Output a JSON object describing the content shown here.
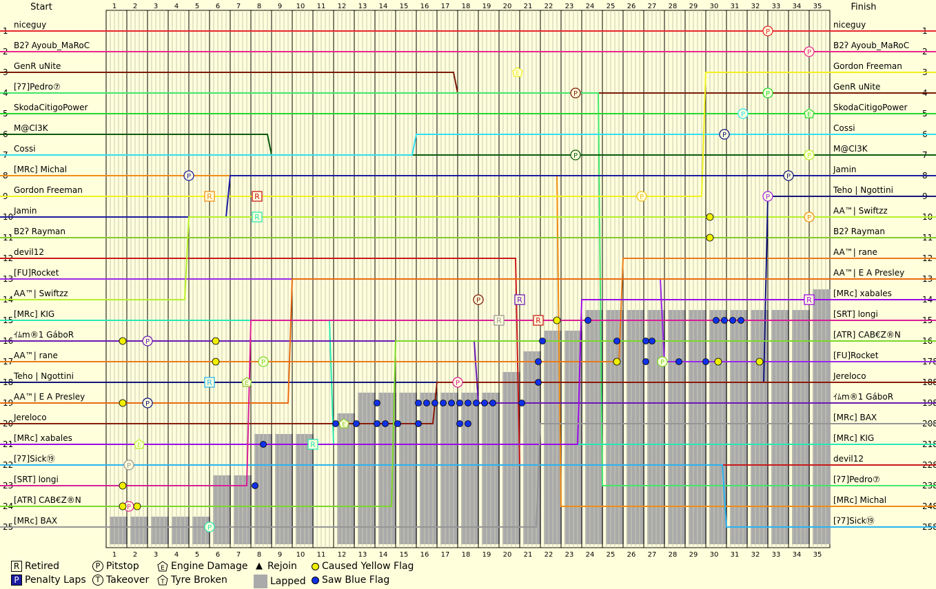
{
  "header": {
    "start_label": "Start",
    "finish_label": "Finish"
  },
  "chart_data": {
    "type": "line",
    "laps": [
      1,
      2,
      3,
      4,
      5,
      6,
      7,
      8,
      9,
      10,
      11,
      12,
      13,
      14,
      15,
      16,
      17,
      18,
      19,
      20,
      21,
      22,
      23,
      24,
      25,
      26,
      27,
      28,
      29,
      30,
      31,
      32,
      33,
      34,
      35
    ],
    "positions": [
      1,
      2,
      3,
      4,
      5,
      6,
      7,
      8,
      9,
      10,
      11,
      12,
      13,
      14,
      15,
      16,
      17,
      18,
      19,
      20,
      21,
      22,
      23,
      24,
      25
    ],
    "right_numbers": [
      "1",
      "2",
      "3",
      "4",
      "5",
      "6",
      "7",
      "8",
      "9",
      "10",
      "11",
      "12",
      "13",
      "14",
      "15",
      "16",
      "17",
      "18",
      "19",
      "20",
      "21",
      "22",
      "23",
      "24",
      "25"
    ],
    "right_suffix_numbers": [
      "1",
      "2",
      "3",
      "4",
      "5",
      "6",
      "7",
      "8",
      "9",
      "10",
      "11",
      "12",
      "13",
      "14",
      "15",
      "16",
      "178",
      "188",
      "198",
      "208",
      "218",
      "228",
      "238",
      "248",
      "258"
    ],
    "start_order": [
      {
        "name": "niceguy",
        "color": "#e8262e"
      },
      {
        "name": "B2ʔ Ayoub_MaRoC",
        "color": "#e8268c"
      },
      {
        "name": "GenR uNite",
        "color": "#7a1a06"
      },
      {
        "name": "[ʔ7]Pedro⑦",
        "color": "#3ee86a"
      },
      {
        "name": "SkodaCitigoPower",
        "color": "#22d82a"
      },
      {
        "name": "M@Cl3K",
        "color": "#0a5a0a"
      },
      {
        "name": "Cossi",
        "color": "#2ee0f0"
      },
      {
        "name": "[MRc] Michal",
        "color": "#f08c14"
      },
      {
        "name": "Gordon Freeman",
        "color": "#f0f020"
      },
      {
        "name": "Jamin",
        "color": "#1a1aa0"
      },
      {
        "name": "B2ʔ Rayman",
        "color": "#86c82a"
      },
      {
        "name": "devil12",
        "color": "#c81818"
      },
      {
        "name": "[FU]Rocket",
        "color": "#9a26e8"
      },
      {
        "name": "AA™| Swiftzz",
        "color": "#b4f028"
      },
      {
        "name": "[MRc] KIG",
        "color": "#28e8b4"
      },
      {
        "name": "ｲﾑm®1 GáboR",
        "color": "#6a18b4"
      },
      {
        "name": "AA™| rane",
        "color": "#e87a1a"
      },
      {
        "name": "Teho | Ngottini",
        "color": "#10147a"
      },
      {
        "name": "AA™| E A Presley",
        "color": "#e86a10"
      },
      {
        "name": "Jereloco",
        "color": "#8a1a08"
      },
      {
        "name": "[MRc] xabales",
        "color": "#9a0ae8"
      },
      {
        "name": "[ʔ7]Sick⑲",
        "color": "#28b4f0"
      },
      {
        "name": "[SRT] longi",
        "color": "#d81e96"
      },
      {
        "name": "[ATR] CAB€Z®N",
        "color": "#7ad828"
      },
      {
        "name": "[MRc] BAX",
        "color": "#969696"
      }
    ],
    "finish_order": [
      {
        "name": "niceguy",
        "color": "#e8262e"
      },
      {
        "name": "B2ʔ Ayoub_MaRoC",
        "color": "#e8268c"
      },
      {
        "name": "Gordon Freeman",
        "color": "#f0f020"
      },
      {
        "name": "GenR uNite",
        "color": "#7a1a06"
      },
      {
        "name": "SkodaCitigoPower",
        "color": "#22d82a"
      },
      {
        "name": "Cossi",
        "color": "#2ee0f0"
      },
      {
        "name": "M@Cl3K",
        "color": "#0a5a0a"
      },
      {
        "name": "Jamin",
        "color": "#1a1aa0"
      },
      {
        "name": "Teho | Ngottini",
        "color": "#10147a"
      },
      {
        "name": "AA™| Swiftzz",
        "color": "#b4f028"
      },
      {
        "name": "B2ʔ Rayman",
        "color": "#86c82a"
      },
      {
        "name": "AA™| rane",
        "color": "#e87a1a"
      },
      {
        "name": "AA™| E A Presley",
        "color": "#e86a10"
      },
      {
        "name": "[MRc] xabales",
        "color": "#9a0ae8"
      },
      {
        "name": "[SRT] longi",
        "color": "#d81e96"
      },
      {
        "name": "[ATR] CAB€Z®N",
        "color": "#7ad828"
      },
      {
        "name": "[FU]Rocket",
        "color": "#9a26e8"
      },
      {
        "name": "Jereloco",
        "color": "#8a1a08"
      },
      {
        "name": "ｲﾑm®1 GáboR",
        "color": "#6a18b4"
      },
      {
        "name": "[MRc] BAX",
        "color": "#969696"
      },
      {
        "name": "[MRc] KIG",
        "color": "#28e8b4"
      },
      {
        "name": "devil12",
        "color": "#c81818"
      },
      {
        "name": "[ʔ7]Pedro⑦",
        "color": "#3ee86a"
      },
      {
        "name": "[MRc] Michal",
        "color": "#f08c14"
      },
      {
        "name": "[ʔ7]Sick⑲",
        "color": "#28b4f0"
      }
    ],
    "lapped_from_position": [
      {
        "lap": 1,
        "pos": 25
      },
      {
        "lap": 2,
        "pos": 25
      },
      {
        "lap": 3,
        "pos": 25
      },
      {
        "lap": 4,
        "pos": 25
      },
      {
        "lap": 5,
        "pos": 25
      },
      {
        "lap": 6,
        "pos": 23
      },
      {
        "lap": 7,
        "pos": 23
      },
      {
        "lap": 8,
        "pos": 21
      },
      {
        "lap": 9,
        "pos": 21
      },
      {
        "lap": 10,
        "pos": 21
      },
      {
        "lap": 12,
        "pos": 20
      },
      {
        "lap": 13,
        "pos": 19
      },
      {
        "lap": 14,
        "pos": 19
      },
      {
        "lap": 15,
        "pos": 19
      },
      {
        "lap": 16,
        "pos": 19
      },
      {
        "lap": 17,
        "pos": 19
      },
      {
        "lap": 18,
        "pos": 19
      },
      {
        "lap": 19,
        "pos": 19
      },
      {
        "lap": 20,
        "pos": 18
      },
      {
        "lap": 21,
        "pos": 17
      },
      {
        "lap": 22,
        "pos": 16
      },
      {
        "lap": 23,
        "pos": 16
      },
      {
        "lap": 24,
        "pos": 15
      },
      {
        "lap": 25,
        "pos": 15
      },
      {
        "lap": 26,
        "pos": 15
      },
      {
        "lap": 27,
        "pos": 15
      },
      {
        "lap": 28,
        "pos": 15
      },
      {
        "lap": 29,
        "pos": 15
      },
      {
        "lap": 30,
        "pos": 15
      },
      {
        "lap": 31,
        "pos": 15
      },
      {
        "lap": 32,
        "pos": 15
      },
      {
        "lap": 33,
        "pos": 15
      },
      {
        "lap": 34,
        "pos": 15
      },
      {
        "lap": 35,
        "pos": 14
      }
    ],
    "events": [
      {
        "type": "pitstop",
        "lap": 32.5,
        "pos": 1,
        "color": "#e8262e"
      },
      {
        "type": "pitstop",
        "lap": 34.5,
        "pos": 2,
        "color": "#e8268c"
      },
      {
        "type": "pitstop",
        "lap": 23.2,
        "pos": 4,
        "color": "#7a1a06"
      },
      {
        "type": "pitstop",
        "lap": 32.5,
        "pos": 4,
        "color": "#22d82a"
      },
      {
        "type": "pitstop",
        "lap": 31.3,
        "pos": 5,
        "color": "#2ee0f0"
      },
      {
        "type": "pitstop",
        "lap": 30.4,
        "pos": 6,
        "color": "#10147a"
      },
      {
        "type": "pitstop",
        "lap": 23.2,
        "pos": 7,
        "color": "#0a5a0a"
      },
      {
        "type": "pitstop",
        "lap": 4.5,
        "pos": 8,
        "color": "#1a1aa0"
      },
      {
        "type": "pitstop",
        "lap": 33.5,
        "pos": 8,
        "color": "#10147a"
      },
      {
        "type": "pitstop",
        "lap": 26.4,
        "pos": 9,
        "color": "#f0c020"
      },
      {
        "type": "pitstop",
        "lap": 32.5,
        "pos": 9,
        "color": "#9a26e8"
      },
      {
        "type": "pitstop",
        "lap": 34.5,
        "pos": 7,
        "color": "#b4f028"
      },
      {
        "type": "pitstop",
        "lap": 34.5,
        "pos": 10,
        "color": "#f08c14"
      },
      {
        "type": "pitstop",
        "lap": 18.5,
        "pos": 14,
        "color": "#7a1a06"
      },
      {
        "type": "pitstop",
        "lap": 2.5,
        "pos": 16,
        "color": "#6a18b4"
      },
      {
        "type": "pitstop",
        "lap": 17.5,
        "pos": 18,
        "color": "#d81e96"
      },
      {
        "type": "pitstop",
        "lap": 2.5,
        "pos": 19,
        "color": "#10147a"
      },
      {
        "type": "pitstop",
        "lap": 1.6,
        "pos": 22,
        "color": "#969696"
      },
      {
        "type": "pitstop",
        "lap": 1.6,
        "pos": 24,
        "color": "#e8268c"
      },
      {
        "type": "pitstop",
        "lap": 8.1,
        "pos": 17,
        "color": "#7ad828"
      },
      {
        "type": "pitstop",
        "lap": 27.4,
        "pos": 17,
        "color": "#7ad828"
      },
      {
        "type": "pitstop",
        "lap": 5.5,
        "pos": 25,
        "color": "#28e8b4"
      },
      {
        "type": "retired",
        "lap": 5.5,
        "pos": 9,
        "color": "#f08c14"
      },
      {
        "type": "retired",
        "lap": 7.8,
        "pos": 9,
        "color": "#c81818"
      },
      {
        "type": "retired",
        "lap": 7.8,
        "pos": 10,
        "color": "#28e8b4"
      },
      {
        "type": "retired",
        "lap": 5.5,
        "pos": 18,
        "color": "#28b4f0"
      },
      {
        "type": "retired",
        "lap": 10.5,
        "pos": 21,
        "color": "#28e8b4"
      },
      {
        "type": "retired",
        "lap": 19.5,
        "pos": 15,
        "color": "#969696"
      },
      {
        "type": "retired",
        "lap": 21.4,
        "pos": 15,
        "color": "#c81818"
      },
      {
        "type": "retired",
        "lap": 20.5,
        "pos": 14,
        "color": "#6a18b4"
      },
      {
        "type": "retired",
        "lap": 34.5,
        "pos": 14,
        "color": "#9a0ae8"
      },
      {
        "type": "engine",
        "lap": 20.4,
        "pos": 3,
        "color": "#f0f020"
      },
      {
        "type": "engine",
        "lap": 34.5,
        "pos": 5,
        "color": "#22d82a"
      },
      {
        "type": "engine",
        "lap": 7.3,
        "pos": 18,
        "color": "#86c82a"
      },
      {
        "type": "engine",
        "lap": 2.1,
        "pos": 21,
        "color": "#b4f028"
      },
      {
        "type": "engine",
        "lap": 12.0,
        "pos": 20,
        "color": "#86c82a"
      }
    ],
    "yellow_flags": [
      {
        "lap": 1.3,
        "pos": 16
      },
      {
        "lap": 1.3,
        "pos": 19
      },
      {
        "lap": 1.3,
        "pos": 23
      },
      {
        "lap": 1.3,
        "pos": 24
      },
      {
        "lap": 2.0,
        "pos": 24
      },
      {
        "lap": 5.8,
        "pos": 16
      },
      {
        "lap": 5.8,
        "pos": 17
      },
      {
        "lap": 22.3,
        "pos": 15
      },
      {
        "lap": 25.2,
        "pos": 17
      },
      {
        "lap": 29.7,
        "pos": 10
      },
      {
        "lap": 29.7,
        "pos": 11
      },
      {
        "lap": 30.1,
        "pos": 17
      },
      {
        "lap": 32.1,
        "pos": 17
      }
    ],
    "blue_flags": [
      {
        "lap": 7.7,
        "pos": 23
      },
      {
        "lap": 8.1,
        "pos": 21
      },
      {
        "lap": 11.6,
        "pos": 20
      },
      {
        "lap": 12.6,
        "pos": 20
      },
      {
        "lap": 13.6,
        "pos": 20
      },
      {
        "lap": 14.0,
        "pos": 20
      },
      {
        "lap": 14.6,
        "pos": 20
      },
      {
        "lap": 13.6,
        "pos": 19
      },
      {
        "lap": 15.6,
        "pos": 20
      },
      {
        "lap": 17.6,
        "pos": 20
      },
      {
        "lap": 18.0,
        "pos": 20
      },
      {
        "lap": 15.6,
        "pos": 19
      },
      {
        "lap": 16.0,
        "pos": 19
      },
      {
        "lap": 16.4,
        "pos": 19
      },
      {
        "lap": 16.8,
        "pos": 19
      },
      {
        "lap": 17.2,
        "pos": 19
      },
      {
        "lap": 17.6,
        "pos": 19
      },
      {
        "lap": 18.0,
        "pos": 19
      },
      {
        "lap": 18.4,
        "pos": 19
      },
      {
        "lap": 18.8,
        "pos": 19
      },
      {
        "lap": 19.2,
        "pos": 19
      },
      {
        "lap": 20.6,
        "pos": 19
      },
      {
        "lap": 21.4,
        "pos": 17
      },
      {
        "lap": 21.6,
        "pos": 16
      },
      {
        "lap": 21.4,
        "pos": 18
      },
      {
        "lap": 23.8,
        "pos": 15
      },
      {
        "lap": 25.2,
        "pos": 16
      },
      {
        "lap": 26.6,
        "pos": 16
      },
      {
        "lap": 26.9,
        "pos": 16
      },
      {
        "lap": 26.6,
        "pos": 17
      },
      {
        "lap": 28.2,
        "pos": 17
      },
      {
        "lap": 29.5,
        "pos": 17
      },
      {
        "lap": 30.0,
        "pos": 15
      },
      {
        "lap": 30.4,
        "pos": 15
      },
      {
        "lap": 30.8,
        "pos": 15
      },
      {
        "lap": 31.2,
        "pos": 15
      }
    ],
    "legend": [
      {
        "key": "retired",
        "label": "Retired",
        "symbol": "R"
      },
      {
        "key": "penalty",
        "label": "Penalty Laps",
        "symbol": "P"
      },
      {
        "key": "pitstop",
        "label": "Pitstop",
        "symbol": "P"
      },
      {
        "key": "takeover",
        "label": "Takeover",
        "symbol": "T"
      },
      {
        "key": "engine",
        "label": "Engine Damage",
        "symbol": "E"
      },
      {
        "key": "tyre",
        "label": "Tyre Broken",
        "symbol": "T"
      },
      {
        "key": "rejoin",
        "label": "Rejoin",
        "symbol": "▲"
      },
      {
        "key": "lapped",
        "label": "Lapped",
        "symbol": ""
      },
      {
        "key": "yellow",
        "label": "Caused Yellow Flag",
        "symbol": ""
      },
      {
        "key": "blue",
        "label": "Saw Blue Flag",
        "symbol": ""
      }
    ]
  }
}
